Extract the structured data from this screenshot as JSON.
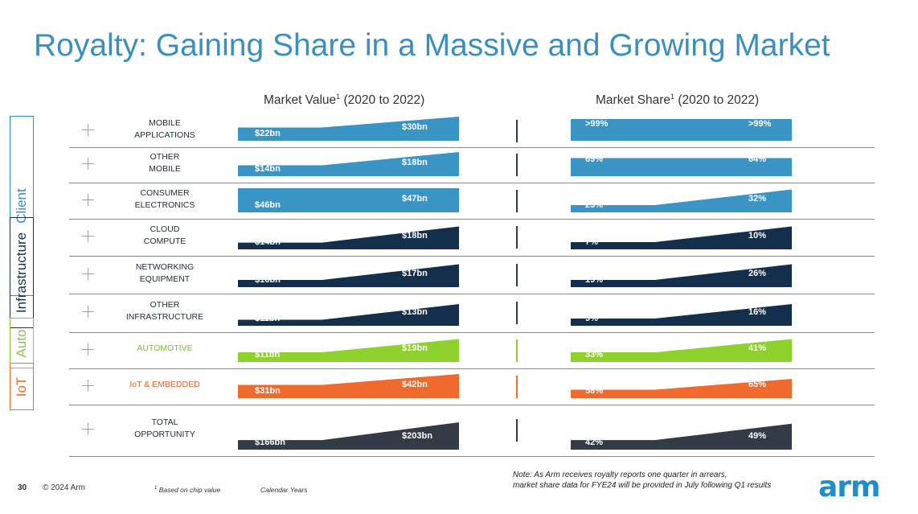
{
  "title": "Royalty: Gaining Share in a Massive and Growing Market",
  "market_value_header": {
    "text": "Market Value",
    "sup": "1",
    "suffix": " (2020 to 2022)"
  },
  "market_share_header": {
    "text": "Market Share",
    "sup": "1",
    "suffix": " (2020 to 2022)"
  },
  "segments": [
    {
      "label": "Client",
      "color": "#2f8fbf"
    },
    {
      "label": "Infrastructure",
      "color": "#14314f"
    },
    {
      "label": "Auto",
      "color": "#8bc53f"
    },
    {
      "label": "IoT",
      "color": "#f26b22"
    }
  ],
  "colors": {
    "client": "#3a94c4",
    "infra": "#142f4c",
    "auto": "#8fd12c",
    "iot": "#ef6a2c",
    "total": "#333c46"
  },
  "rows": [
    {
      "label": "MOBILE\nAPPLICATIONS",
      "color_key": "client",
      "value_start": "$22bn",
      "value_end": "$30bn",
      "share_start": ">99%",
      "share_end": ">99%",
      "label_color": "#1f2a36"
    },
    {
      "label": "OTHER\nMOBILE",
      "color_key": "client",
      "value_start": "$14bn",
      "value_end": "$18bn",
      "share_start": "69%",
      "share_end": "64%",
      "label_color": "#1f2a36"
    },
    {
      "label": "CONSUMER\nELECTRONICS",
      "color_key": "client",
      "value_start": "$46bn",
      "value_end": "$47bn",
      "share_start": "25%",
      "share_end": "32%",
      "label_color": "#1f2a36"
    },
    {
      "label": "CLOUD\nCOMPUTE",
      "color_key": "infra",
      "value_start": "$14bn",
      "value_end": "$18bn",
      "share_start": "7%",
      "share_end": "10%",
      "label_color": "#1f2a36"
    },
    {
      "label": "NETWORKING\nEQUIPMENT",
      "color_key": "infra",
      "value_start": "$16bn",
      "value_end": "$17bn",
      "share_start": "19%",
      "share_end": "26%",
      "label_color": "#1f2a36"
    },
    {
      "label": "OTHER\nINFRASTRUCTURE",
      "color_key": "infra",
      "value_start": "$11bn",
      "value_end": "$13bn",
      "share_start": "9%",
      "share_end": "16%",
      "label_color": "#1f2a36"
    },
    {
      "label": "AUTOMOTIVE",
      "color_key": "auto",
      "value_start": "$11bn",
      "value_end": "$19bn",
      "share_start": "33%",
      "share_end": "41%",
      "label_color": "#7cc22a"
    },
    {
      "label": "IoT & EMBEDDED",
      "color_key": "iot",
      "value_start": "$31bn",
      "value_end": "$42bn",
      "share_start": "58%",
      "share_end": "65%",
      "label_color": "#e8602a"
    },
    {
      "label": "TOTAL\nOPPORTUNITY",
      "color_key": "total",
      "value_start": "$166bn",
      "value_end": "$203bn",
      "share_start": "42%",
      "share_end": "49%",
      "label_color": "#1f2a36"
    }
  ],
  "footer": {
    "page_number": "30",
    "copyright": "© 2024 Arm",
    "footnote_mark": "1",
    "footnote": " Based on chip value",
    "calendar": "Calendar Years",
    "note_line1": "Note: As Arm receives royalty reports one quarter in arrears,",
    "note_line2": "market share data for FYE24 will be provided in July following Q1 results",
    "logo": "arm"
  }
}
